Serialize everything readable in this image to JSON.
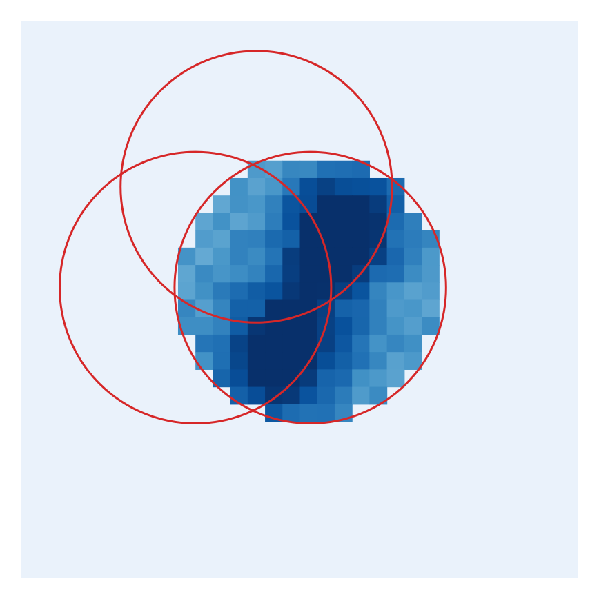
{
  "chart_data": {
    "type": "heatmap",
    "grid": false,
    "title": "",
    "xlabel": "",
    "ylabel": "",
    "rows": 32,
    "cols": 32,
    "colormap": "Blues",
    "value_range": [
      0,
      1
    ],
    "circle_color": "#d62728",
    "background_color": "#eaf2fb",
    "circles": [
      {
        "cx": 13.5,
        "cy": 9.5,
        "r": 8.0
      },
      {
        "cx": 10.0,
        "cy": 15.3,
        "r": 8.0
      },
      {
        "cx": 16.6,
        "cy": 15.3,
        "r": 8.0
      }
    ],
    "disk": {
      "cx": 16.6,
      "cy": 15.3,
      "r": 7.6
    },
    "blobs": [
      {
        "cx": 18.6,
        "cy": 11.5,
        "s": 2.2,
        "a": 0.55
      },
      {
        "cx": 14.8,
        "cy": 19.5,
        "s": 2.3,
        "a": 0.55
      },
      {
        "cx": 16.8,
        "cy": 15.5,
        "s": 2.5,
        "a": 0.25
      }
    ],
    "base_level": 0.58,
    "noise": 0.07,
    "noise_seed": 7
  }
}
